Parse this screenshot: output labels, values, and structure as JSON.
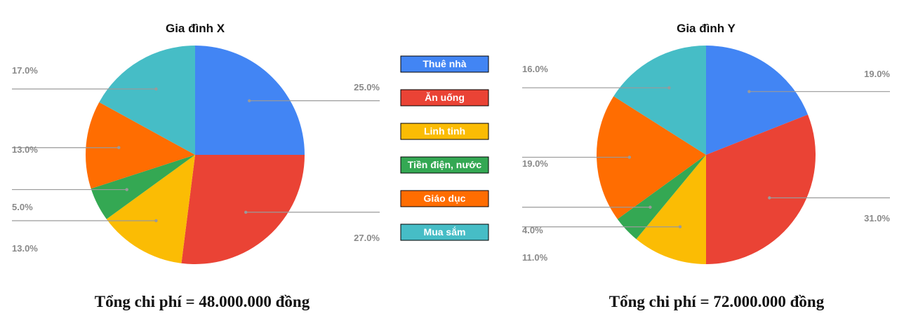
{
  "chart_data": [
    {
      "type": "pie",
      "title": "Gia đình X",
      "categories": [
        "Thuê nhà",
        "Ăn uống",
        "Linh tinh",
        "Tiền điện, nước",
        "Giáo dục",
        "Mua sắm"
      ],
      "values": [
        25.0,
        27.0,
        13.0,
        5.0,
        13.0,
        17.0
      ],
      "labels": [
        "25.0%",
        "27.0%",
        "13.0%",
        "5.0%",
        "13.0%",
        "17.0%"
      ],
      "colors": [
        "#4285f4",
        "#ea4335",
        "#fbbc04",
        "#34a853",
        "#ff6d01",
        "#46bdc6"
      ],
      "total_text": "Tổng chi phí = 48.000.000 đồng"
    },
    {
      "type": "pie",
      "title": "Gia đình Y",
      "categories": [
        "Thuê nhà",
        "Ăn uống",
        "Linh tinh",
        "Tiền điện, nước",
        "Giáo dục",
        "Mua sắm"
      ],
      "values": [
        19.0,
        31.0,
        11.0,
        4.0,
        19.0,
        16.0
      ],
      "labels": [
        "19.0%",
        "31.0%",
        "11.0%",
        "4.0%",
        "19.0%",
        "16.0%"
      ],
      "colors": [
        "#4285f4",
        "#ea4335",
        "#fbbc04",
        "#34a853",
        "#ff6d01",
        "#46bdc6"
      ],
      "total_text": "Tổng chi phí = 72.000.000 đồng"
    }
  ],
  "legend": {
    "placement": "center",
    "items": [
      {
        "label": "Thuê nhà",
        "color": "#4285f4"
      },
      {
        "label": "Ăn uống",
        "color": "#ea4335"
      },
      {
        "label": "Linh tinh",
        "color": "#fbbc04"
      },
      {
        "label": "Tiền điện, nước",
        "color": "#34a853"
      },
      {
        "label": "Giáo dục",
        "color": "#ff6d01"
      },
      {
        "label": "Mua sắm",
        "color": "#46bdc6"
      }
    ]
  }
}
